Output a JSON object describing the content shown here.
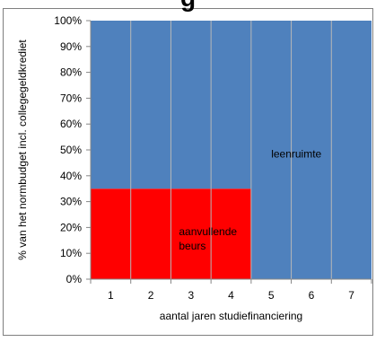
{
  "title_fragment": "g",
  "chart_data": {
    "type": "bar",
    "stacked": true,
    "categories": [
      "1",
      "2",
      "3",
      "4",
      "5",
      "6",
      "7"
    ],
    "series": [
      {
        "name": "aanvullende beurs",
        "values": [
          35,
          35,
          35,
          35,
          0,
          0,
          0
        ],
        "color": "#ff0000"
      },
      {
        "name": "leenruimte",
        "values": [
          65,
          65,
          65,
          65,
          100,
          100,
          100
        ],
        "color": "#4f81bd"
      }
    ],
    "xlabel": "aantal jaren studiefinanciering",
    "ylabel": "% van het normbudget incl. collegegeldkrediet",
    "ylim": [
      0,
      100
    ],
    "yticks": [
      "0%",
      "10%",
      "20%",
      "30%",
      "40%",
      "50%",
      "60%",
      "70%",
      "80%",
      "90%",
      "100%"
    ],
    "grid": false,
    "legend": "none",
    "annotations": [
      {
        "text_lines": [
          "leenruimte"
        ],
        "x": 5,
        "y": 47
      },
      {
        "text_lines": [
          "aanvullende",
          "beurs"
        ],
        "x": 2.7,
        "y": 17
      }
    ],
    "colors": {
      "border": "#7f7f7f",
      "divider": "#b7b7b7",
      "axis": "#868686"
    }
  }
}
